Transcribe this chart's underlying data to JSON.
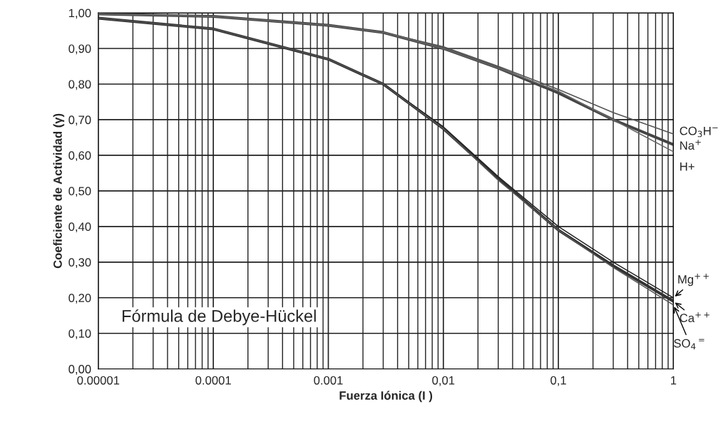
{
  "chart_data": {
    "type": "line",
    "xlabel": "Fuerza Iónica (I )",
    "ylabel": "Coeficiente de Actividad (γ)",
    "x": [
      1e-05,
      0.0001,
      0.001,
      0.003,
      0.01,
      0.03,
      0.1,
      0.3,
      1
    ],
    "series": [
      {
        "name": "CO$_{3}$H$^{−}$",
        "color": "#555555",
        "values": [
          0.997,
          0.99,
          0.965,
          0.945,
          0.905,
          0.85,
          0.785,
          0.72,
          0.66
        ]
      },
      {
        "name": "Na$^{+}$",
        "color": "#444444",
        "values": [
          0.997,
          0.99,
          0.965,
          0.945,
          0.9,
          0.845,
          0.775,
          0.7,
          0.63
        ]
      },
      {
        "name": "H+",
        "color": "#666666",
        "values": [
          0.997,
          0.99,
          0.965,
          0.945,
          0.9,
          0.845,
          0.78,
          0.7,
          0.61
        ]
      },
      {
        "name": "Mg$^{++}$",
        "color": "#222222",
        "values": [
          0.985,
          0.955,
          0.87,
          0.8,
          0.68,
          0.54,
          0.4,
          0.3,
          0.2
        ]
      },
      {
        "name": "Ca$^{++}$",
        "color": "#333333",
        "values": [
          0.985,
          0.955,
          0.87,
          0.8,
          0.675,
          0.535,
          0.39,
          0.29,
          0.19
        ]
      },
      {
        "name": "SO$_{4}$$^{=}$",
        "color": "#555555",
        "values": [
          0.985,
          0.955,
          0.87,
          0.8,
          0.675,
          0.53,
          0.39,
          0.285,
          0.18
        ]
      }
    ],
    "log": "x",
    "xlim": [
      1e-05,
      1
    ],
    "ylim": [
      0,
      1
    ],
    "xticks": [
      {
        "value": 1e-05,
        "label": "0.00001"
      },
      {
        "value": 0.0001,
        "label": "0.0001"
      },
      {
        "value": 0.001,
        "label": "0.001"
      },
      {
        "value": 0.01,
        "label": "0,01"
      },
      {
        "value": 0.1,
        "label": "0,1"
      },
      {
        "value": 1,
        "label": "1"
      }
    ],
    "yticks": [
      {
        "value": 0,
        "label": "0,00"
      },
      {
        "value": 0.1,
        "label": "0,10"
      },
      {
        "value": 0.2,
        "label": "0,20"
      },
      {
        "value": 0.3,
        "label": "0,30"
      },
      {
        "value": 0.4,
        "label": "0,40"
      },
      {
        "value": 0.5,
        "label": "0,50"
      },
      {
        "value": 0.6,
        "label": "0,60"
      },
      {
        "value": 0.7,
        "label": "0,70"
      },
      {
        "value": 0.8,
        "label": "0,80"
      },
      {
        "value": 0.9,
        "label": "0,90"
      },
      {
        "value": 1,
        "label": "1,00"
      }
    ],
    "grid": true,
    "marker": "none",
    "line_style": "solid",
    "legend": false,
    "annotations": [
      "Fórmula de Debye-Hückel"
    ]
  }
}
